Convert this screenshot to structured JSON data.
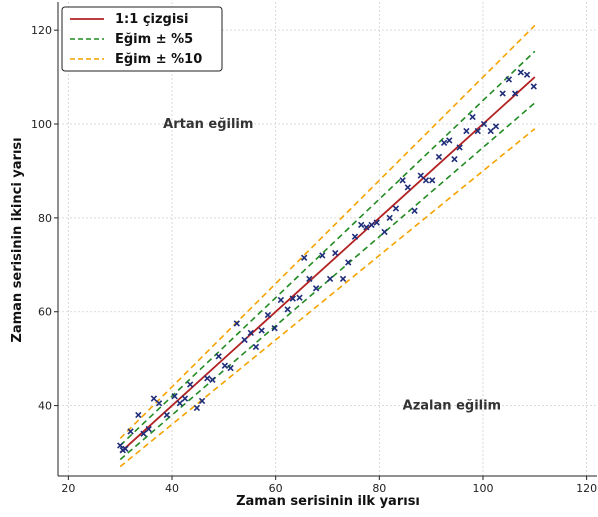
{
  "chart_data": {
    "type": "line",
    "xlabel": "Zaman serisinin ilk yarısı",
    "ylabel": "Zaman serisinin ikinci yarısı",
    "xlim": [
      18,
      122
    ],
    "ylim": [
      25,
      126
    ],
    "xticks": [
      20,
      40,
      60,
      80,
      100,
      120
    ],
    "yticks": [
      40,
      60,
      80,
      100,
      120
    ],
    "grid": true,
    "legend_position": "top-left",
    "colors": {
      "one_to_one": "#b22222",
      "slope5": "#228b22",
      "slope10": "#f4a300",
      "points": "#1f2d7a",
      "grid": "#d0d0d0",
      "axis": "#222222"
    },
    "lines": [
      {
        "name": "1:1 çizgisi",
        "style": "solid",
        "color": "#b22222",
        "x": [
          30,
          110
        ],
        "y": [
          30,
          110
        ]
      },
      {
        "name": "Eğim ± %5",
        "style": "dashed",
        "color": "#228b22",
        "x": [
          30,
          110
        ],
        "y": [
          31.5,
          115.5
        ]
      },
      {
        "name": "",
        "style": "dashed",
        "color": "#228b22",
        "x": [
          30,
          110
        ],
        "y": [
          28.5,
          104.5
        ]
      },
      {
        "name": "Eğim ± %10",
        "style": "dashed",
        "color": "#f4a300",
        "x": [
          30,
          110
        ],
        "y": [
          33,
          121
        ]
      },
      {
        "name": "",
        "style": "dashed",
        "color": "#f4a300",
        "x": [
          30,
          110
        ],
        "y": [
          27,
          99
        ]
      }
    ],
    "legend": [
      "1:1 çizgisi",
      "Eğim ± %5",
      "Eğim ± %10"
    ],
    "annotations": [
      {
        "text": "Artan eğilim",
        "x": 47,
        "y": 100
      },
      {
        "text": "Azalan eğilim",
        "x": 94,
        "y": 40
      }
    ],
    "scatter": {
      "marker": "x",
      "color": "#1f2d7a",
      "points": [
        [
          30,
          31.5
        ],
        [
          30.5,
          30.5
        ],
        [
          31,
          30.8
        ],
        [
          32,
          34.5
        ],
        [
          33.5,
          38
        ],
        [
          34.5,
          34
        ],
        [
          35.5,
          35
        ],
        [
          36.5,
          41.5
        ],
        [
          37.5,
          40.5
        ],
        [
          39,
          38
        ],
        [
          40.5,
          42
        ],
        [
          41.5,
          40.5
        ],
        [
          42.5,
          41.5
        ],
        [
          43.5,
          44.5
        ],
        [
          44.8,
          39.5
        ],
        [
          45.8,
          41
        ],
        [
          46.8,
          45.8
        ],
        [
          47.8,
          45.5
        ],
        [
          49,
          50.5
        ],
        [
          50.2,
          48.5
        ],
        [
          51.3,
          48
        ],
        [
          52.5,
          57.5
        ],
        [
          54,
          54
        ],
        [
          55.2,
          55.5
        ],
        [
          56.2,
          52.5
        ],
        [
          57.3,
          56
        ],
        [
          58.5,
          59.3
        ],
        [
          59.8,
          56.5
        ],
        [
          61,
          62.5
        ],
        [
          62.3,
          60.5
        ],
        [
          63.3,
          62.8
        ],
        [
          64.6,
          63
        ],
        [
          65.5,
          71.5
        ],
        [
          66.5,
          67
        ],
        [
          67.8,
          65
        ],
        [
          69,
          72
        ],
        [
          70.5,
          67
        ],
        [
          71.5,
          72.5
        ],
        [
          73,
          67
        ],
        [
          74,
          70.5
        ],
        [
          75.3,
          76
        ],
        [
          76.5,
          78.5
        ],
        [
          77.5,
          78
        ],
        [
          78.5,
          78.5
        ],
        [
          79.5,
          79
        ],
        [
          81,
          77
        ],
        [
          82,
          80
        ],
        [
          83.2,
          82
        ],
        [
          84.5,
          88
        ],
        [
          85.5,
          86.5
        ],
        [
          86.8,
          81.5
        ],
        [
          88,
          89
        ],
        [
          89,
          88
        ],
        [
          90.2,
          88
        ],
        [
          91.5,
          93
        ],
        [
          92.5,
          96
        ],
        [
          93.5,
          96.5
        ],
        [
          94.5,
          92.5
        ],
        [
          95.5,
          95
        ],
        [
          96.8,
          98.5
        ],
        [
          98,
          101.5
        ],
        [
          99,
          98.5
        ],
        [
          100.2,
          100
        ],
        [
          101.5,
          98.5
        ],
        [
          102.5,
          99.5
        ],
        [
          103.8,
          106.5
        ],
        [
          105,
          109.5
        ],
        [
          106.2,
          106.5
        ],
        [
          107.3,
          111
        ],
        [
          108.5,
          110.5
        ],
        [
          109.8,
          108
        ]
      ]
    }
  }
}
